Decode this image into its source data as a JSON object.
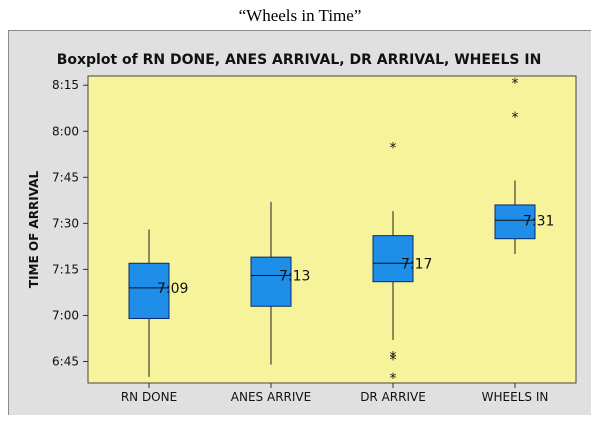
{
  "caption": "“Wheels in Time”",
  "chart_data": {
    "type": "box",
    "title": "Boxplot of RN DONE, ANES ARRIVAL, DR ARRIVAL, WHEELS IN",
    "xlabel": "",
    "ylabel": "TIME OF ARRIVAL",
    "ylim_minutes": [
      398,
      498
    ],
    "y_ticks": [
      {
        "label": "6:45",
        "value": 405
      },
      {
        "label": "7:00",
        "value": 420
      },
      {
        "label": "7:15",
        "value": 435
      },
      {
        "label": "7:30",
        "value": 450
      },
      {
        "label": "7:45",
        "value": 465
      },
      {
        "label": "8:00",
        "value": 480
      },
      {
        "label": "8:15",
        "value": 495
      }
    ],
    "categories": [
      "RN DONE",
      "ANES ARRIVE",
      "DR ARRIVE",
      "WHEELS IN"
    ],
    "boxes": [
      {
        "whisker_low": 400,
        "q1": 419,
        "median": 429,
        "q3": 437,
        "whisker_high": 448,
        "outliers": [],
        "label": "7:09"
      },
      {
        "whisker_low": 404,
        "q1": 423,
        "median": 433,
        "q3": 439,
        "whisker_high": 457,
        "outliers": [],
        "label": "7:13"
      },
      {
        "whisker_low": 412,
        "q1": 431,
        "median": 437,
        "q3": 446,
        "whisker_high": 454,
        "outliers": [
          475,
          407,
          406,
          400
        ],
        "label": "7:17"
      },
      {
        "whisker_low": 440,
        "q1": 445,
        "median": 451,
        "q3": 456,
        "whisker_high": 464,
        "outliers": [
          496,
          485
        ],
        "label": "7:31"
      }
    ],
    "colors": {
      "plot_bg": "#f7f39b",
      "box_fill": "#1e8ee8",
      "box_stroke": "#0a2a6a",
      "frame_bg": "#e0e0e0"
    },
    "grid": false
  }
}
